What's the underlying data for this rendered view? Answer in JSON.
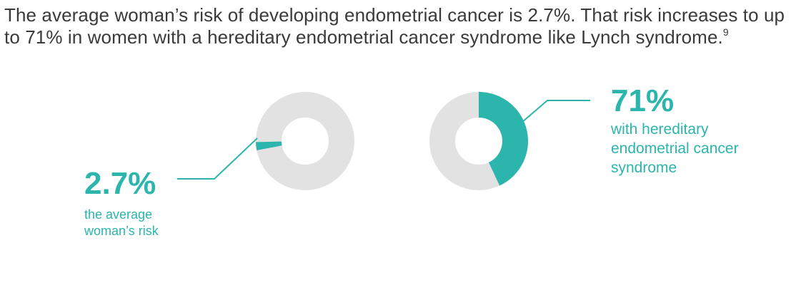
{
  "intro": {
    "text": "The average woman’s risk of developing endometrial cancer is 2.7%. That risk increases to up to 71% in women with a hereditary endometrial cancer syndrome like Lynch syndrome.",
    "footnote": "9"
  },
  "colors": {
    "accent": "#2bb5ad",
    "track": "#e2e2e2",
    "text": "#3a3a3a"
  },
  "chart_data": [
    {
      "type": "pie",
      "variant": "donut",
      "value_percent": 2.7,
      "value_label": "2.7%",
      "caption": [
        "the average",
        "woman’s risk"
      ]
    },
    {
      "type": "pie",
      "variant": "donut",
      "value_percent": 71,
      "value_label": "71%",
      "caption": [
        "with hereditary",
        "endometrial cancer",
        "syndrome"
      ]
    }
  ]
}
